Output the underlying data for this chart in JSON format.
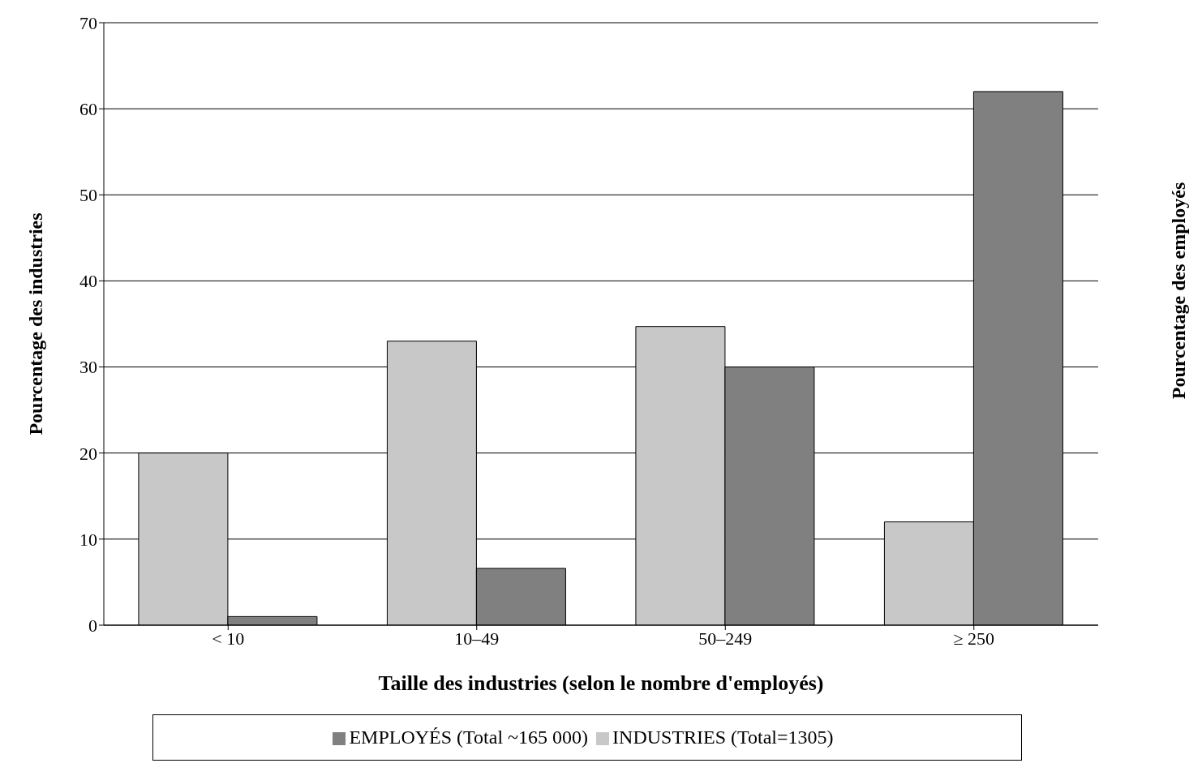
{
  "chart_data": {
    "type": "bar",
    "categories": [
      "< 10",
      "10–49",
      "50–249",
      "≥ 250"
    ],
    "series": [
      {
        "name": "INDUSTRIES (Total=1305)",
        "color": "#c8c8c8",
        "values": [
          20,
          33,
          34.7,
          12
        ]
      },
      {
        "name": "EMPLOYÉS (Total ~165 000)",
        "color": "#808080",
        "values": [
          1,
          6.6,
          30,
          62
        ]
      }
    ],
    "xlabel": "Taille des industries (selon le nombre d'employés)",
    "ylabel": "Pourcentage des industries",
    "y2label": "Pourcentage des employés",
    "ylim": [
      0,
      70
    ],
    "yticks": [
      0,
      10,
      20,
      30,
      40,
      50,
      60,
      70
    ],
    "grid": "y",
    "legend": "bottom"
  }
}
